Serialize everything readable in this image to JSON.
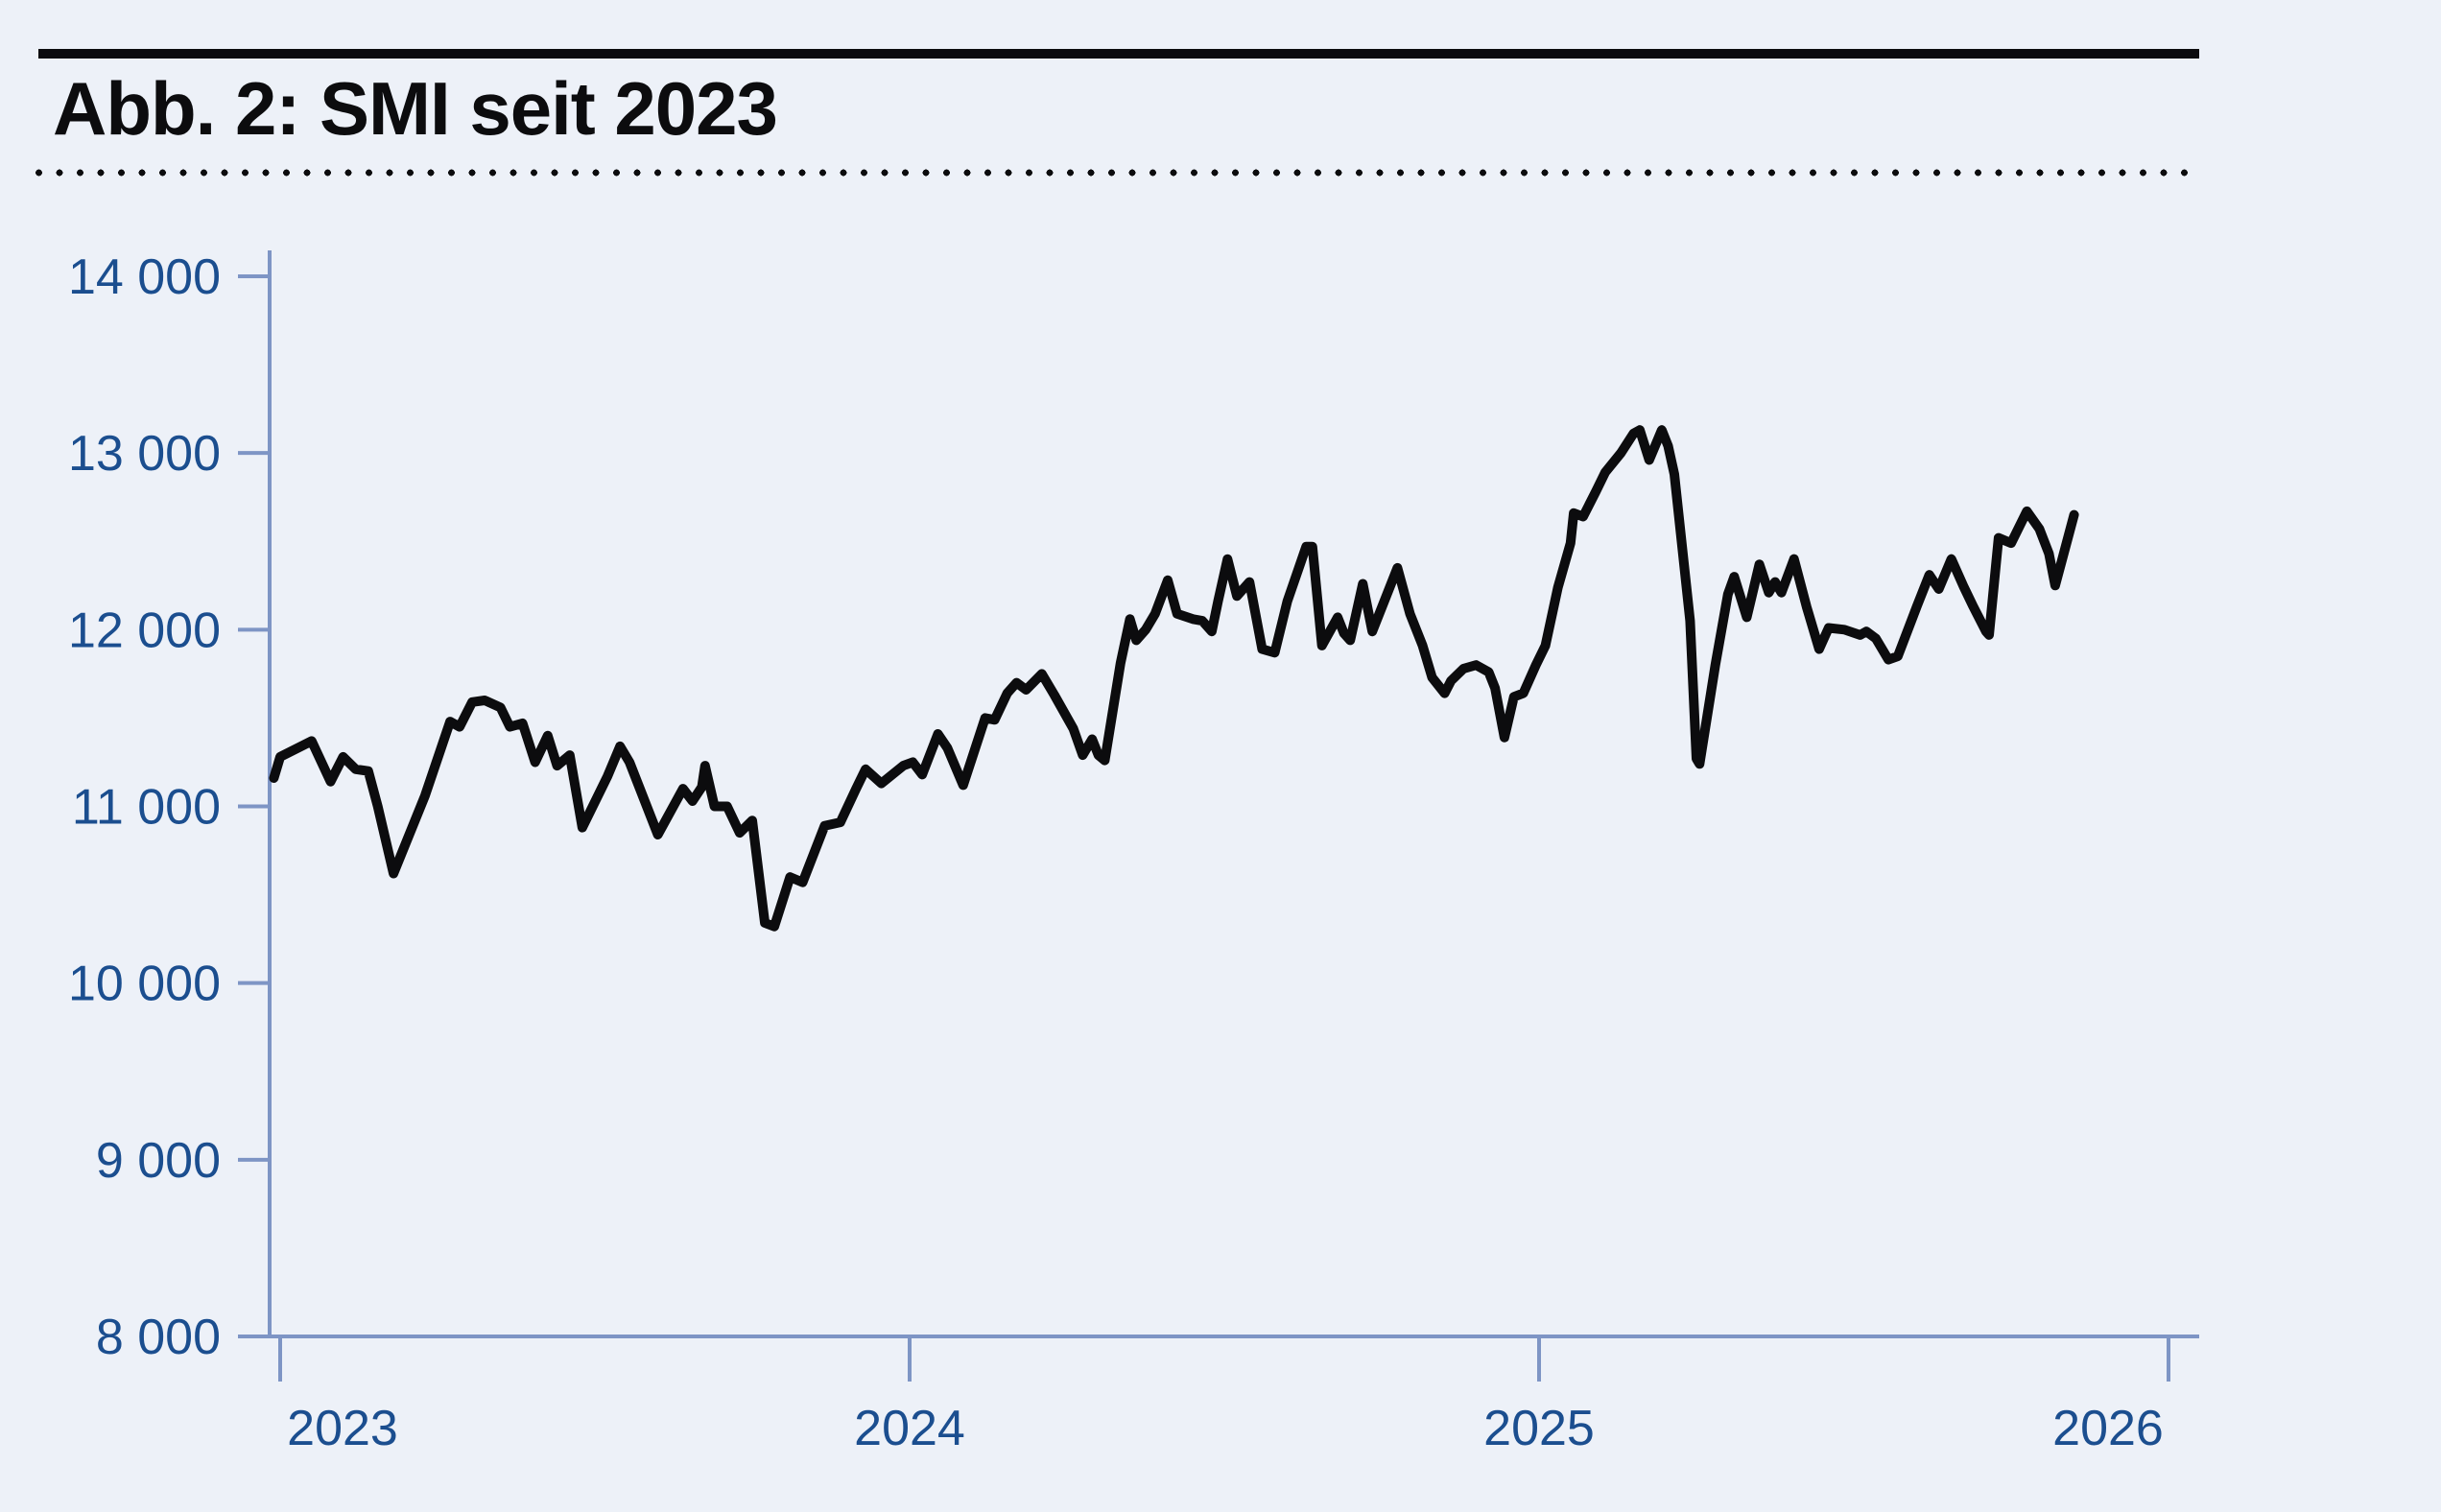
{
  "figure": {
    "title": "Abb. 2: SMI seit 2023"
  },
  "chart_data": {
    "type": "line",
    "title": "Abb. 2: SMI seit 2023",
    "xlabel": "",
    "ylabel": "",
    "grid": false,
    "legend": "none",
    "colors": {
      "background": "#edf1f8",
      "axis": "#7e95c5",
      "tick_labels": "#1b4e8f",
      "line": "#0c0c0e"
    },
    "x_axis": {
      "range": [
        2022.98,
        2026.05
      ],
      "ticks": [
        {
          "value": 2023,
          "label": "2023"
        },
        {
          "value": 2024,
          "label": "2024"
        },
        {
          "value": 2025,
          "label": "2025"
        },
        {
          "value": 2026,
          "label": "2026"
        }
      ]
    },
    "y_axis": {
      "range": [
        8000,
        14000
      ],
      "ticks": [
        {
          "value": 8000,
          "label": "8 000"
        },
        {
          "value": 9000,
          "label": "9 000"
        },
        {
          "value": 10000,
          "label": "10 000"
        },
        {
          "value": 11000,
          "label": "11 000"
        },
        {
          "value": 12000,
          "label": "12 000"
        },
        {
          "value": 13000,
          "label": "13 000"
        },
        {
          "value": 14000,
          "label": "14 000"
        }
      ]
    },
    "series": [
      {
        "name": "SMI",
        "points": [
          [
            2022.99,
            11160
          ],
          [
            2023.0,
            11280
          ],
          [
            2023.05,
            11370
          ],
          [
            2023.08,
            11140
          ],
          [
            2023.1,
            11280
          ],
          [
            2023.12,
            11210
          ],
          [
            2023.14,
            11200
          ],
          [
            2023.155,
            11000
          ],
          [
            2023.18,
            10620
          ],
          [
            2023.23,
            11060
          ],
          [
            2023.27,
            11480
          ],
          [
            2023.285,
            11450
          ],
          [
            2023.305,
            11590
          ],
          [
            2023.325,
            11600
          ],
          [
            2023.35,
            11560
          ],
          [
            2023.365,
            11450
          ],
          [
            2023.385,
            11470
          ],
          [
            2023.405,
            11250
          ],
          [
            2023.425,
            11400
          ],
          [
            2023.44,
            11230
          ],
          [
            2023.46,
            11290
          ],
          [
            2023.48,
            10880
          ],
          [
            2023.52,
            11170
          ],
          [
            2023.54,
            11340
          ],
          [
            2023.555,
            11250
          ],
          [
            2023.6,
            10840
          ],
          [
            2023.64,
            11100
          ],
          [
            2023.655,
            11030
          ],
          [
            2023.67,
            11110
          ],
          [
            2023.675,
            11230
          ],
          [
            2023.69,
            11000
          ],
          [
            2023.71,
            11000
          ],
          [
            2023.73,
            10850
          ],
          [
            2023.75,
            10920
          ],
          [
            2023.77,
            10340
          ],
          [
            2023.785,
            10320
          ],
          [
            2023.81,
            10600
          ],
          [
            2023.83,
            10570
          ],
          [
            2023.865,
            10890
          ],
          [
            2023.89,
            10910
          ],
          [
            2023.915,
            11100
          ],
          [
            2023.93,
            11210
          ],
          [
            2023.955,
            11130
          ],
          [
            2023.99,
            11230
          ],
          [
            2024.005,
            11250
          ],
          [
            2024.02,
            11180
          ],
          [
            2024.045,
            11410
          ],
          [
            2024.06,
            11330
          ],
          [
            2024.085,
            11120
          ],
          [
            2024.12,
            11500
          ],
          [
            2024.135,
            11490
          ],
          [
            2024.155,
            11640
          ],
          [
            2024.17,
            11700
          ],
          [
            2024.185,
            11660
          ],
          [
            2024.21,
            11750
          ],
          [
            2024.23,
            11630
          ],
          [
            2024.26,
            11440
          ],
          [
            2024.275,
            11290
          ],
          [
            2024.29,
            11380
          ],
          [
            2024.3,
            11290
          ],
          [
            2024.31,
            11260
          ],
          [
            2024.335,
            11810
          ],
          [
            2024.35,
            12060
          ],
          [
            2024.36,
            11940
          ],
          [
            2024.375,
            12000
          ],
          [
            2024.39,
            12090
          ],
          [
            2024.41,
            12280
          ],
          [
            2024.425,
            12090
          ],
          [
            2024.45,
            12060
          ],
          [
            2024.465,
            12050
          ],
          [
            2024.48,
            11990
          ],
          [
            2024.49,
            12160
          ],
          [
            2024.505,
            12400
          ],
          [
            2024.52,
            12190
          ],
          [
            2024.54,
            12270
          ],
          [
            2024.56,
            11890
          ],
          [
            2024.58,
            11870
          ],
          [
            2024.6,
            12160
          ],
          [
            2024.63,
            12470
          ],
          [
            2024.64,
            12470
          ],
          [
            2024.655,
            11910
          ],
          [
            2024.68,
            12070
          ],
          [
            2024.69,
            11980
          ],
          [
            2024.7,
            11940
          ],
          [
            2024.72,
            12260
          ],
          [
            2024.735,
            11990
          ],
          [
            2024.775,
            12350
          ],
          [
            2024.795,
            12090
          ],
          [
            2024.815,
            11910
          ],
          [
            2024.83,
            11730
          ],
          [
            2024.85,
            11640
          ],
          [
            2024.86,
            11710
          ],
          [
            2024.88,
            11780
          ],
          [
            2024.9,
            11800
          ],
          [
            2024.92,
            11760
          ],
          [
            2024.93,
            11670
          ],
          [
            2024.945,
            11390
          ],
          [
            2024.96,
            11620
          ],
          [
            2024.975,
            11640
          ],
          [
            2024.995,
            11800
          ],
          [
            2025.01,
            11910
          ],
          [
            2025.03,
            12240
          ],
          [
            2025.05,
            12490
          ],
          [
            2025.055,
            12660
          ],
          [
            2025.07,
            12640
          ],
          [
            2025.09,
            12780
          ],
          [
            2025.105,
            12890
          ],
          [
            2025.13,
            13000
          ],
          [
            2025.15,
            13110
          ],
          [
            2025.16,
            13130
          ],
          [
            2025.175,
            12960
          ],
          [
            2025.195,
            13130
          ],
          [
            2025.205,
            13040
          ],
          [
            2025.215,
            12880
          ],
          [
            2025.24,
            12050
          ],
          [
            2025.25,
            11270
          ],
          [
            2025.255,
            11240
          ],
          [
            2025.28,
            11800
          ],
          [
            2025.3,
            12200
          ],
          [
            2025.31,
            12300
          ],
          [
            2025.33,
            12070
          ],
          [
            2025.35,
            12370
          ],
          [
            2025.365,
            12210
          ],
          [
            2025.375,
            12270
          ],
          [
            2025.385,
            12210
          ],
          [
            2025.405,
            12400
          ],
          [
            2025.425,
            12130
          ],
          [
            2025.445,
            11890
          ],
          [
            2025.46,
            12010
          ],
          [
            2025.485,
            12000
          ],
          [
            2025.51,
            11970
          ],
          [
            2025.52,
            11990
          ],
          [
            2025.535,
            11950
          ],
          [
            2025.555,
            11830
          ],
          [
            2025.57,
            11850
          ],
          [
            2025.6,
            12130
          ],
          [
            2025.62,
            12310
          ],
          [
            2025.635,
            12230
          ],
          [
            2025.655,
            12400
          ],
          [
            2025.675,
            12240
          ],
          [
            2025.69,
            12130
          ],
          [
            2025.71,
            11990
          ],
          [
            2025.715,
            11970
          ],
          [
            2025.73,
            12520
          ],
          [
            2025.75,
            12490
          ],
          [
            2025.775,
            12670
          ],
          [
            2025.795,
            12570
          ],
          [
            2025.81,
            12430
          ],
          [
            2025.82,
            12250
          ],
          [
            2025.85,
            12650
          ]
        ]
      }
    ]
  }
}
